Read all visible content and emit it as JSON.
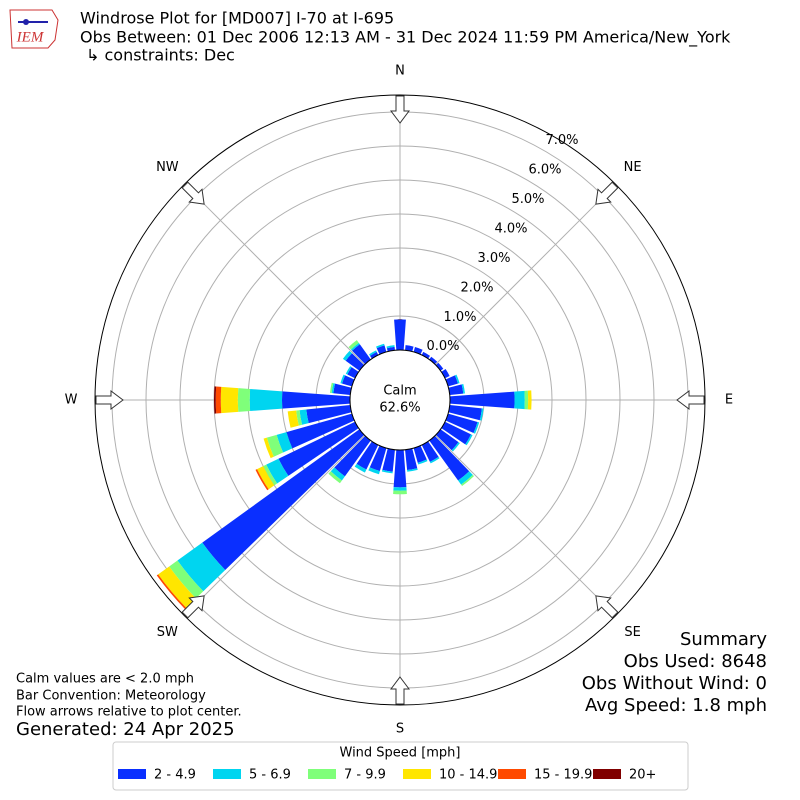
{
  "header": {
    "title": "Windrose Plot for [MD007] I-70 at I-695",
    "period": "Obs Between: 01 Dec 2006 12:13 AM - 31 Dec 2024 11:59 PM America/New_York",
    "constraints": "↳ constraints: Dec",
    "logo_text": "IEM"
  },
  "chart_data": {
    "type": "windrose",
    "x": [
      0,
      10,
      20,
      30,
      40,
      50,
      60,
      70,
      80,
      90,
      100,
      110,
      120,
      130,
      140,
      150,
      160,
      170,
      180,
      190,
      200,
      210,
      220,
      230,
      240,
      250,
      260,
      270,
      280,
      290,
      300,
      310,
      320,
      330,
      340,
      350
    ],
    "compass_labels": [
      "N",
      "NE",
      "E",
      "SE",
      "S",
      "SW",
      "W",
      "NW"
    ],
    "calm_label": "Calm",
    "calm_value": 62.6,
    "calm_value_label": "62.6%",
    "ylim": [
      0,
      7.5
    ],
    "yticks": [
      {
        "value": 0,
        "label": "0.0%"
      },
      {
        "value": 1,
        "label": "1.0%"
      },
      {
        "value": 2,
        "label": "2.0%"
      },
      {
        "value": 3,
        "label": "3.0%"
      },
      {
        "value": 4,
        "label": "4.0%"
      },
      {
        "value": 5,
        "label": "5.0%"
      },
      {
        "value": 6,
        "label": "6.0%"
      },
      {
        "value": 7,
        "label": "7.0%"
      }
    ],
    "legend_title": "Wind Speed [mph]",
    "series": [
      {
        "name": "2 - 4.9",
        "color": "#0a2fff",
        "values": [
          0.9,
          0.15,
          0.15,
          0.1,
          0.1,
          0.1,
          0.15,
          0.3,
          0.4,
          1.9,
          0.95,
          0.9,
          0.85,
          0.65,
          1.45,
          0.55,
          0.45,
          0.6,
          1.1,
          0.65,
          0.7,
          0.8,
          1.3,
          5.7,
          2.5,
          2.0,
          1.3,
          2.0,
          0.5,
          0.3,
          0.25,
          0.5,
          0.55,
          0.1,
          0.2,
          0.1
        ]
      },
      {
        "name": "5 - 6.9",
        "color": "#00d5f0",
        "values": [
          0,
          0,
          0,
          0,
          0,
          0,
          0,
          0.05,
          0.05,
          0.3,
          0.05,
          0.05,
          0.05,
          0.05,
          0.15,
          0.05,
          0.05,
          0.05,
          0.1,
          0.05,
          0.1,
          0.1,
          0.15,
          0.9,
          0.4,
          0.3,
          0.2,
          0.95,
          0.05,
          0.05,
          0.05,
          0.1,
          0.05,
          0.05,
          0.05,
          0.05
        ]
      },
      {
        "name": "7 - 9.9",
        "color": "#7fff7a",
        "values": [
          0,
          0,
          0,
          0,
          0,
          0,
          0,
          0,
          0,
          0.1,
          0,
          0,
          0,
          0,
          0.05,
          0,
          0,
          0,
          0.1,
          0,
          0,
          0,
          0.1,
          0.3,
          0.1,
          0.3,
          0.1,
          0.35,
          0.05,
          0,
          0,
          0,
          0.1,
          0,
          0,
          0
        ]
      },
      {
        "name": "10 - 14.9",
        "color": "#ffe600",
        "values": [
          0,
          0,
          0,
          0,
          0,
          0,
          0,
          0,
          0,
          0.1,
          0,
          0,
          0,
          0,
          0,
          0,
          0,
          0,
          0,
          0,
          0,
          0,
          0,
          0.4,
          0.2,
          0.1,
          0.25,
          0.5,
          0,
          0,
          0,
          0,
          0,
          0,
          0,
          0
        ]
      },
      {
        "name": "15 - 19.9",
        "color": "#ff4a00",
        "values": [
          0,
          0,
          0,
          0,
          0,
          0,
          0,
          0,
          0,
          0,
          0,
          0,
          0,
          0,
          0,
          0,
          0,
          0,
          0,
          0,
          0,
          0,
          0,
          0.05,
          0.05,
          0,
          0,
          0.15,
          0,
          0,
          0,
          0,
          0,
          0,
          0,
          0
        ]
      },
      {
        "name": "20+",
        "color": "#800000",
        "values": [
          0,
          0,
          0,
          0,
          0,
          0,
          0,
          0,
          0,
          0,
          0,
          0,
          0,
          0,
          0,
          0,
          0,
          0,
          0,
          0,
          0,
          0,
          0,
          0,
          0,
          0,
          0,
          0.05,
          0,
          0,
          0,
          0,
          0,
          0,
          0,
          0
        ]
      }
    ]
  },
  "summary": {
    "title": "Summary",
    "lines": [
      "Obs Used: 8648",
      "Obs Without Wind: 0",
      "Avg Speed: 1.8 mph"
    ]
  },
  "notes": [
    "Calm values are < 2.0 mph",
    "Bar Convention: Meteorology",
    "Flow arrows relative to plot center."
  ],
  "generated": "Generated: 24 Apr 2025"
}
